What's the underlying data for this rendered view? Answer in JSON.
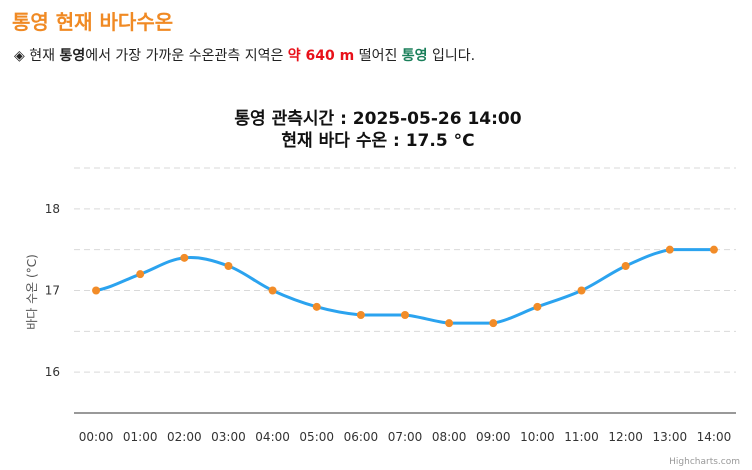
{
  "page": {
    "title": "통영 현재 바다수온"
  },
  "info": {
    "bullet": "◈",
    "prefix": "현재",
    "location": "통영",
    "middle": "에서 가장 가까운 수온관측 지역은",
    "distance": "약 640 m",
    "after_distance": "떨어진",
    "station": "통영",
    "suffix": "입니다."
  },
  "chart_data": {
    "type": "line",
    "title": "통영 관측시간 : 2025-05-26 14:00",
    "subtitle": "현재 바다 수온 : 17.5 °C",
    "xlabel": "",
    "ylabel": "바다 수온 (°C)",
    "categories": [
      "00:00",
      "01:00",
      "02:00",
      "03:00",
      "04:00",
      "05:00",
      "06:00",
      "07:00",
      "08:00",
      "09:00",
      "10:00",
      "11:00",
      "12:00",
      "13:00",
      "14:00"
    ],
    "series": [
      {
        "values": [
          17.0,
          17.2,
          17.4,
          17.3,
          17.0,
          16.8,
          16.7,
          16.7,
          16.6,
          16.6,
          16.8,
          17.0,
          17.3,
          17.5,
          17.5
        ]
      }
    ],
    "yticks": [
      16,
      17,
      18
    ],
    "ylim": [
      15.5,
      18.5
    ],
    "grid": true,
    "colors": {
      "line": "#2ba3ef",
      "marker": "#f28c28"
    },
    "credit": "Highcharts.com"
  }
}
